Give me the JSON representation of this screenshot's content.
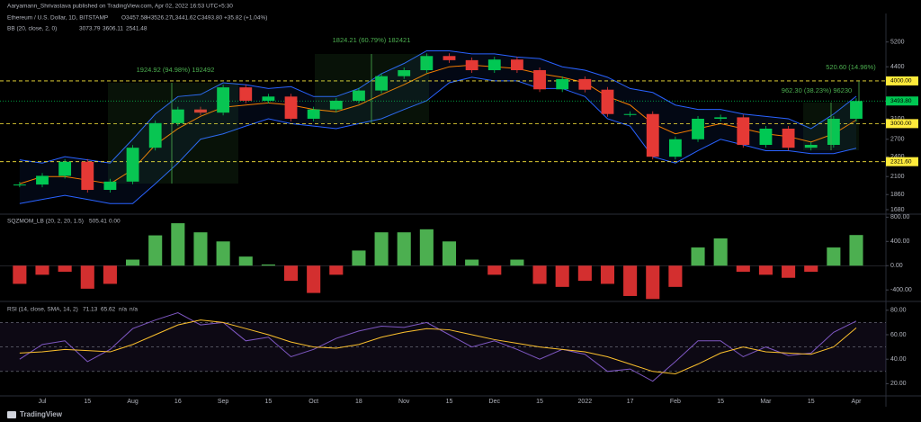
{
  "header": {
    "published": "Aaryamann_Shrivastava published on TradingView.com, Apr 02, 2022 16:53 UTC+5:30",
    "symbol": "Ethereum / U.S. Dollar, 1D, BITSTAMP",
    "ohlc": [
      "O3457.58",
      "H3526.27",
      "L3441.62",
      "C3493.80"
    ],
    "change": "+35.82 (+1.04%)",
    "footer": "TradingView"
  },
  "chart_data": [
    {
      "type": "candlestick",
      "title": "BB (20, close, 2, 0)",
      "categories": [
        null,
        "Jul",
        null,
        "15",
        null,
        "Aug",
        null,
        "16",
        null,
        "Sep",
        null,
        "15",
        null,
        "Oct",
        null,
        "18",
        null,
        "Nov",
        null,
        "15",
        null,
        "Dec",
        null,
        "15",
        null,
        "2022",
        null,
        "17",
        null,
        "Feb",
        null,
        "15",
        null,
        "Mar",
        null,
        "15",
        null,
        "Apr"
      ],
      "close": [
        1990,
        2110,
        2320,
        1920,
        2030,
        2550,
        3010,
        3300,
        3230,
        3830,
        3500,
        3600,
        3100,
        3300,
        3500,
        3750,
        4130,
        4300,
        4730,
        4600,
        4300,
        4620,
        4300,
        3780,
        4050,
        3770,
        3200,
        3200,
        2400,
        2700,
        3100,
        3130,
        2600,
        2900,
        2550,
        2600,
        3100,
        3493.8
      ],
      "up_color": "#00c853",
      "down_color": "#e53935",
      "bands": {
        "basis": {
          "color": "#f57c00",
          "last_label": "3073.79",
          "values": [
            2000,
            2100,
            2100,
            2050,
            2000,
            2200,
            2600,
            2900,
            3150,
            3350,
            3400,
            3450,
            3400,
            3300,
            3250,
            3400,
            3650,
            3900,
            4200,
            4400,
            4450,
            4400,
            4350,
            4200,
            4100,
            3950,
            3600,
            3400,
            3000,
            2800,
            2900,
            3000,
            2900,
            2800,
            2750,
            2650,
            2800,
            3073.79
          ]
        },
        "upper": {
          "color": "#2962ff",
          "last_label": "3606.11",
          "values": [
            2350,
            2300,
            2400,
            2350,
            2300,
            2700,
            3200,
            3600,
            3650,
            3950,
            3900,
            3800,
            3850,
            3600,
            3600,
            3800,
            4200,
            4500,
            4900,
            4900,
            4800,
            4800,
            4700,
            4650,
            4400,
            4300,
            4100,
            3800,
            3700,
            3400,
            3300,
            3300,
            3200,
            3150,
            3100,
            2900,
            3200,
            3606.11
          ]
        },
        "lower": {
          "color": "#2962ff",
          "last_label": "2541.48",
          "values": [
            1750,
            1800,
            1850,
            1800,
            1750,
            1750,
            2000,
            2300,
            2700,
            2800,
            2950,
            3100,
            3000,
            2950,
            2900,
            3000,
            3100,
            3300,
            3500,
            3950,
            4100,
            4000,
            4000,
            3800,
            3800,
            3600,
            3100,
            2950,
            2400,
            2300,
            2500,
            2700,
            2600,
            2500,
            2500,
            2450,
            2450,
            2541.48
          ]
        }
      },
      "log_scale": true,
      "ylim": [
        1640,
        6300
      ],
      "yticks": [
        1680,
        1860,
        2100,
        2400,
        2700,
        3100,
        4400,
        5200
      ],
      "levels": [
        {
          "value": 4000,
          "label": "4000.00"
        },
        {
          "value": 3000,
          "label": "3000.00"
        },
        {
          "value": 2321.6,
          "label": "2321.60"
        }
      ],
      "level_color": "#ffeb3b",
      "last_price": {
        "value": 3493.8,
        "label": "3493.80"
      },
      "annotations": [
        "1924.92 (94.98%) 192492",
        "1824.21 (60.79%) 182421",
        "962.30 (38.23%) 96230",
        "520.60 (14.96%)"
      ]
    },
    {
      "type": "bar",
      "title": "SQZMOM_LB (20, 2, 20, 1.5)",
      "legend_labels": [
        "505.41",
        "0.00"
      ],
      "values": [
        -300,
        -150,
        -100,
        -380,
        -300,
        100,
        500,
        700,
        550,
        400,
        150,
        20,
        -250,
        -450,
        -150,
        250,
        550,
        550,
        600,
        400,
        100,
        -150,
        100,
        -300,
        -350,
        -250,
        -300,
        -500,
        -550,
        -350,
        300,
        450,
        -100,
        -150,
        -200,
        -100,
        300,
        505.41
      ],
      "up_color": "#4caf50",
      "down_color": "#d32f2f",
      "ylim": [
        -560,
        820
      ],
      "yticks": [
        {
          "value": 800,
          "label": "800.00"
        },
        {
          "value": 400,
          "label": "400.00"
        },
        {
          "value": 0,
          "label": "0.00"
        },
        {
          "value": -400,
          "label": "-400.00"
        }
      ]
    },
    {
      "type": "line",
      "title": "RSI (14, close, SMA, 14, 2)",
      "legend_labels": [
        "71.13",
        "65.62",
        "n/a",
        "n/a"
      ],
      "series": [
        {
          "color": "#7e57c2",
          "values": [
            40,
            52,
            55,
            38,
            48,
            65,
            72,
            78,
            68,
            70,
            55,
            58,
            42,
            48,
            57,
            63,
            67,
            66,
            70,
            60,
            50,
            55,
            48,
            40,
            48,
            44,
            30,
            32,
            22,
            38,
            55,
            55,
            42,
            50,
            43,
            45,
            62,
            71.13
          ]
        },
        {
          "color": "#fbc02d",
          "values": [
            45,
            46,
            48,
            47,
            46,
            52,
            60,
            68,
            72,
            70,
            65,
            60,
            54,
            50,
            49,
            52,
            58,
            62,
            65,
            64,
            60,
            56,
            53,
            50,
            48,
            46,
            42,
            36,
            30,
            28,
            36,
            45,
            50,
            46,
            45,
            44,
            50,
            65.62
          ]
        }
      ],
      "band_levels": [
        30,
        50,
        70
      ],
      "ylim": [
        10,
        85
      ],
      "yticks": [
        {
          "value": 80,
          "label": "80.00"
        },
        {
          "value": 60,
          "label": "60.00"
        },
        {
          "value": 40,
          "label": "40.00"
        },
        {
          "value": 20,
          "label": "20.00"
        }
      ]
    }
  ]
}
